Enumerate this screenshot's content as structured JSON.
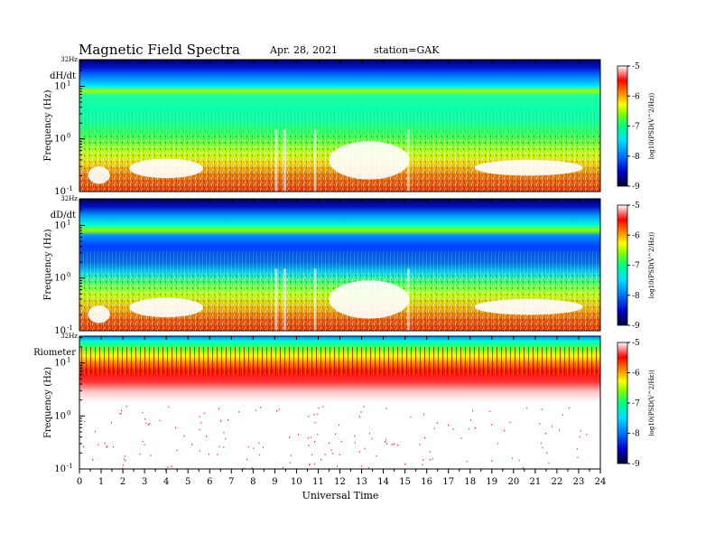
{
  "header": {
    "title": "Magnetic  Field  Spectra",
    "date": "Apr. 28, 2021",
    "station": "station=GAK"
  },
  "colors": {
    "spectrum_scale": [
      "#000040",
      "#0000c8",
      "#0060ff",
      "#00d8ff",
      "#00ff90",
      "#60ff00",
      "#ffff00",
      "#ff8000",
      "#ff0000",
      "#ffffff"
    ]
  },
  "chart_data": [
    {
      "type": "heatmap",
      "panel_label": "dH/dt",
      "top_label": "32Hz",
      "ylabel": "Frequency  (Hz)",
      "y_scale": "log",
      "ylim": [
        0.1,
        32
      ],
      "yticks": [
        {
          "value": 10,
          "base": "10",
          "exp": "1"
        },
        {
          "value": 1,
          "base": "10",
          "exp": "0"
        },
        {
          "value": 0.1,
          "base": "10",
          "exp": "-1"
        }
      ],
      "colorbar": {
        "label": "log10(PSD(V^2/Hz))",
        "ticks": [
          "-5",
          "-6",
          "-7",
          "-8",
          "-9"
        ],
        "range": [
          -9,
          -5
        ]
      }
    },
    {
      "type": "heatmap",
      "panel_label": "dD/dt",
      "top_label": "32Hz",
      "ylabel": "Frequency  (Hz)",
      "y_scale": "log",
      "ylim": [
        0.1,
        32
      ],
      "yticks": [
        {
          "value": 10,
          "base": "10",
          "exp": "1"
        },
        {
          "value": 1,
          "base": "10",
          "exp": "0"
        },
        {
          "value": 0.1,
          "base": "10",
          "exp": "-1"
        }
      ],
      "colorbar": {
        "label": "log10(PSD(V^2/Hz))",
        "ticks": [
          "-5",
          "-6",
          "-7",
          "-8",
          "-9"
        ],
        "range": [
          -9,
          -5
        ]
      }
    },
    {
      "type": "heatmap",
      "panel_label": "Riometer",
      "top_label": "32Hz",
      "ylabel": "Frequency  (Hz)",
      "y_scale": "log",
      "ylim": [
        0.1,
        32
      ],
      "yticks": [
        {
          "value": 10,
          "base": "10",
          "exp": "1"
        },
        {
          "value": 1,
          "base": "10",
          "exp": "0"
        },
        {
          "value": 0.1,
          "base": "10",
          "exp": "-1"
        }
      ],
      "colorbar": {
        "label": "log10(PSD(V^2/Hz))",
        "ticks": [
          "-5",
          "-6",
          "-7",
          "-8",
          "-9"
        ],
        "range": [
          -9,
          -5
        ]
      }
    }
  ],
  "x_axis": {
    "label": "Universal  Time",
    "xlim": [
      0,
      24
    ],
    "ticks": [
      "0",
      "1",
      "2",
      "3",
      "4",
      "5",
      "6",
      "7",
      "8",
      "9",
      "10",
      "11",
      "12",
      "13",
      "14",
      "15",
      "16",
      "17",
      "18",
      "19",
      "20",
      "21",
      "22",
      "23",
      "24"
    ]
  }
}
